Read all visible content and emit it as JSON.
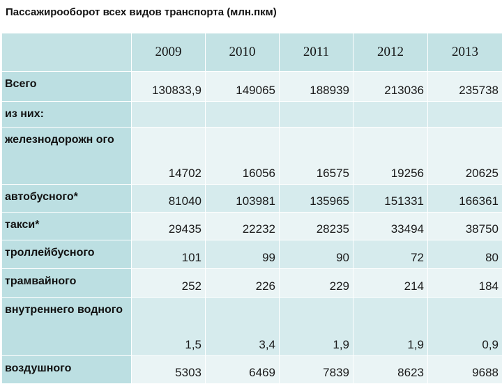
{
  "title": "Пассажирооборот всех видов транспорта (млн.пкм)",
  "table": {
    "corner": "",
    "years": [
      "2009",
      "2010",
      "2011",
      "2012",
      "2013"
    ],
    "rows": [
      {
        "label": "Всего",
        "values": [
          "130833,9",
          "149065",
          "188939",
          "213036",
          "235738"
        ]
      },
      {
        "label": "из них:",
        "values": [
          "",
          "",
          "",
          "",
          ""
        ]
      },
      {
        "label": "железнодорожн ого",
        "values": [
          "14702",
          "16056",
          "16575",
          "19256",
          "20625"
        ]
      },
      {
        "label": "автобусного*",
        "values": [
          "81040",
          "103981",
          "135965",
          "151331",
          "166361"
        ]
      },
      {
        "label": "такси*",
        "values": [
          "29435",
          "22232",
          "28235",
          "33494",
          "38750"
        ]
      },
      {
        "label": "троллейбусного",
        "values": [
          "101",
          "99",
          "90",
          "72",
          "80"
        ]
      },
      {
        "label": "трамвайного",
        "values": [
          "252",
          "226",
          "229",
          "214",
          "184"
        ]
      },
      {
        "label": "внутреннего водного",
        "values": [
          "1,5",
          "3,4",
          "1,9",
          "1,9",
          "0,9"
        ]
      },
      {
        "label": "воздушного",
        "values": [
          "5303",
          "6469",
          "7839",
          "8623",
          "9688"
        ]
      }
    ]
  },
  "colors": {
    "header_bg": "#c3e2e4",
    "label_bg": "#bcdfe2",
    "row_light": "#eaf4f5",
    "row_dark": "#d6ebed"
  }
}
